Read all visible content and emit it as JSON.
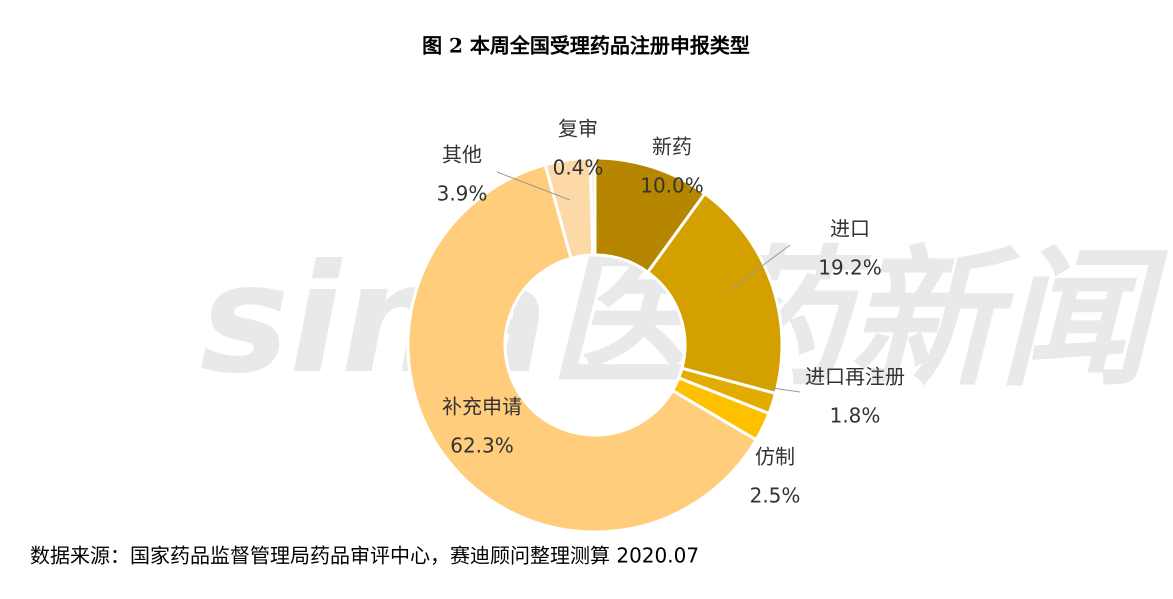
{
  "chart_data": {
    "type": "donut",
    "title": "图 2  本周全国受理药品注册申报类型",
    "watermark": "sina医药新闻",
    "categories": [
      "新药",
      "进口",
      "进口再注册",
      "仿制",
      "补充申请",
      "其他",
      "复审"
    ],
    "values": [
      10.0,
      19.2,
      1.8,
      2.5,
      62.3,
      3.9,
      0.4
    ],
    "value_labels": [
      "10.0%",
      "19.2%",
      "1.8%",
      "2.5%",
      "62.3%",
      "3.9%",
      "0.4%"
    ],
    "colors": [
      "#b78600",
      "#d4a000",
      "#e2ad00",
      "#ffc000",
      "#ffcd7c",
      "#fdd9a8",
      "#fde6c6"
    ],
    "source": "数据来源：国家药品监督管理局药品审评中心，赛迪顾问整理测算 2020.07"
  }
}
